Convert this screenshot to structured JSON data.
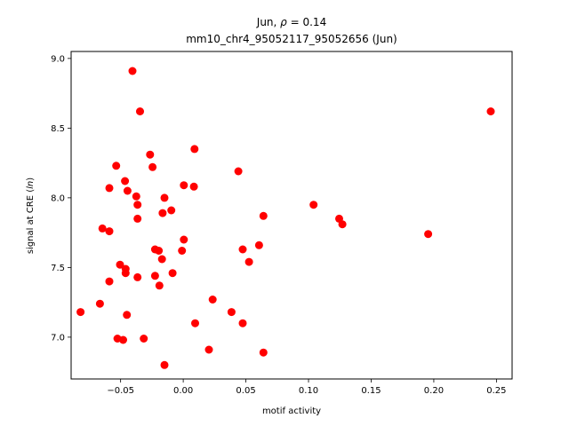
{
  "chart_data": {
    "type": "scatter",
    "title_line1": "Jun, ",
    "title_rho": "ρ",
    "title_eq": " = 0.14",
    "title_line2": "mm10_chr4_95052117_95052656 (Jun)",
    "xlabel": "motif activity",
    "ylabel_prefix": "signal at CRE (",
    "ylabel_italic": "ln",
    "ylabel_suffix": ")",
    "xlim": [
      -0.0895,
      0.2625
    ],
    "ylim": [
      6.7,
      9.05
    ],
    "xticks": [
      -0.05,
      0.0,
      0.05,
      0.1,
      0.15,
      0.2,
      0.25
    ],
    "xtick_labels": [
      "−0.05",
      "0.00",
      "0.05",
      "0.10",
      "0.15",
      "0.20",
      "0.25"
    ],
    "yticks": [
      7.0,
      7.5,
      8.0,
      8.5,
      9.0
    ],
    "ytick_labels": [
      "7.0",
      "7.5",
      "8.0",
      "8.5",
      "9.0"
    ],
    "grid": false,
    "marker_color": "#ff0000",
    "points": [
      {
        "x": -0.0405,
        "y": 8.91
      },
      {
        "x": -0.0345,
        "y": 8.62
      },
      {
        "x": 0.2455,
        "y": 8.62
      },
      {
        "x": 0.009,
        "y": 8.35
      },
      {
        "x": -0.0265,
        "y": 8.31
      },
      {
        "x": -0.0535,
        "y": 8.23
      },
      {
        "x": -0.0245,
        "y": 8.22
      },
      {
        "x": 0.044,
        "y": 8.19
      },
      {
        "x": -0.0465,
        "y": 8.12
      },
      {
        "x": 0.0005,
        "y": 8.09
      },
      {
        "x": 0.0085,
        "y": 8.08
      },
      {
        "x": -0.059,
        "y": 8.07
      },
      {
        "x": -0.0445,
        "y": 8.05
      },
      {
        "x": -0.0375,
        "y": 8.01
      },
      {
        "x": -0.015,
        "y": 8.0
      },
      {
        "x": -0.0365,
        "y": 7.95
      },
      {
        "x": 0.104,
        "y": 7.95
      },
      {
        "x": -0.0095,
        "y": 7.91
      },
      {
        "x": -0.0165,
        "y": 7.89
      },
      {
        "x": 0.064,
        "y": 7.87
      },
      {
        "x": -0.0365,
        "y": 7.85
      },
      {
        "x": 0.1245,
        "y": 7.85
      },
      {
        "x": 0.127,
        "y": 7.81
      },
      {
        "x": -0.0645,
        "y": 7.78
      },
      {
        "x": -0.059,
        "y": 7.76
      },
      {
        "x": 0.1955,
        "y": 7.74
      },
      {
        "x": 0.0005,
        "y": 7.7
      },
      {
        "x": 0.0605,
        "y": 7.66
      },
      {
        "x": -0.0225,
        "y": 7.63
      },
      {
        "x": -0.0195,
        "y": 7.62
      },
      {
        "x": -0.001,
        "y": 7.62
      },
      {
        "x": 0.0475,
        "y": 7.63
      },
      {
        "x": -0.017,
        "y": 7.56
      },
      {
        "x": 0.0525,
        "y": 7.54
      },
      {
        "x": -0.0505,
        "y": 7.52
      },
      {
        "x": -0.046,
        "y": 7.49
      },
      {
        "x": -0.046,
        "y": 7.46
      },
      {
        "x": -0.0085,
        "y": 7.46
      },
      {
        "x": -0.0225,
        "y": 7.44
      },
      {
        "x": -0.0365,
        "y": 7.43
      },
      {
        "x": -0.059,
        "y": 7.4
      },
      {
        "x": -0.019,
        "y": 7.37
      },
      {
        "x": 0.0235,
        "y": 7.27
      },
      {
        "x": -0.0665,
        "y": 7.24
      },
      {
        "x": -0.082,
        "y": 7.18
      },
      {
        "x": 0.0385,
        "y": 7.18
      },
      {
        "x": -0.045,
        "y": 7.16
      },
      {
        "x": 0.0095,
        "y": 7.1
      },
      {
        "x": 0.0475,
        "y": 7.1
      },
      {
        "x": -0.0525,
        "y": 6.99
      },
      {
        "x": -0.0315,
        "y": 6.99
      },
      {
        "x": -0.048,
        "y": 6.98
      },
      {
        "x": 0.0205,
        "y": 6.91
      },
      {
        "x": 0.064,
        "y": 6.89
      },
      {
        "x": -0.015,
        "y": 6.8
      }
    ]
  }
}
